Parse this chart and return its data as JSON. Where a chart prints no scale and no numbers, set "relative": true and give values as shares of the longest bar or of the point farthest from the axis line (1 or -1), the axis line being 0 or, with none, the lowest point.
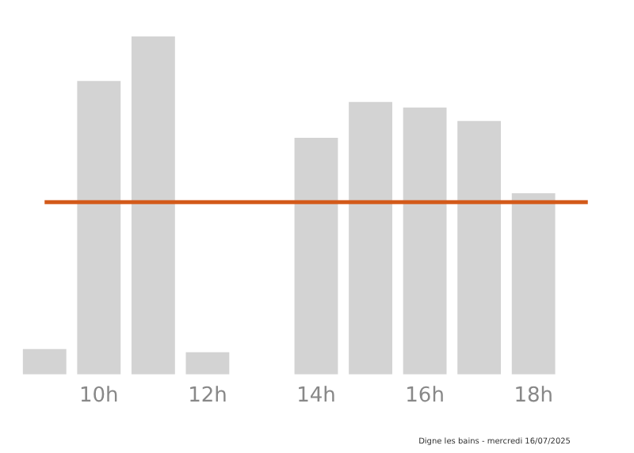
{
  "chart_data": {
    "type": "bar",
    "relative": true,
    "categories": [
      null,
      "10h",
      null,
      "12h",
      null,
      "14h",
      null,
      "16h",
      null,
      "18h",
      null
    ],
    "values": [
      0.075,
      0.868,
      1,
      0.066,
      null,
      0.7,
      0.806,
      0.79,
      0.75,
      0.536,
      null
    ],
    "color": "#d3d3d3",
    "ref_lines": [
      {
        "axis": "y",
        "value": 0.51,
        "color": "#d35a1a"
      }
    ],
    "annotations": [
      "Digne les bains - mercredi 16/07/2025"
    ],
    "grid": false,
    "legend": false
  }
}
